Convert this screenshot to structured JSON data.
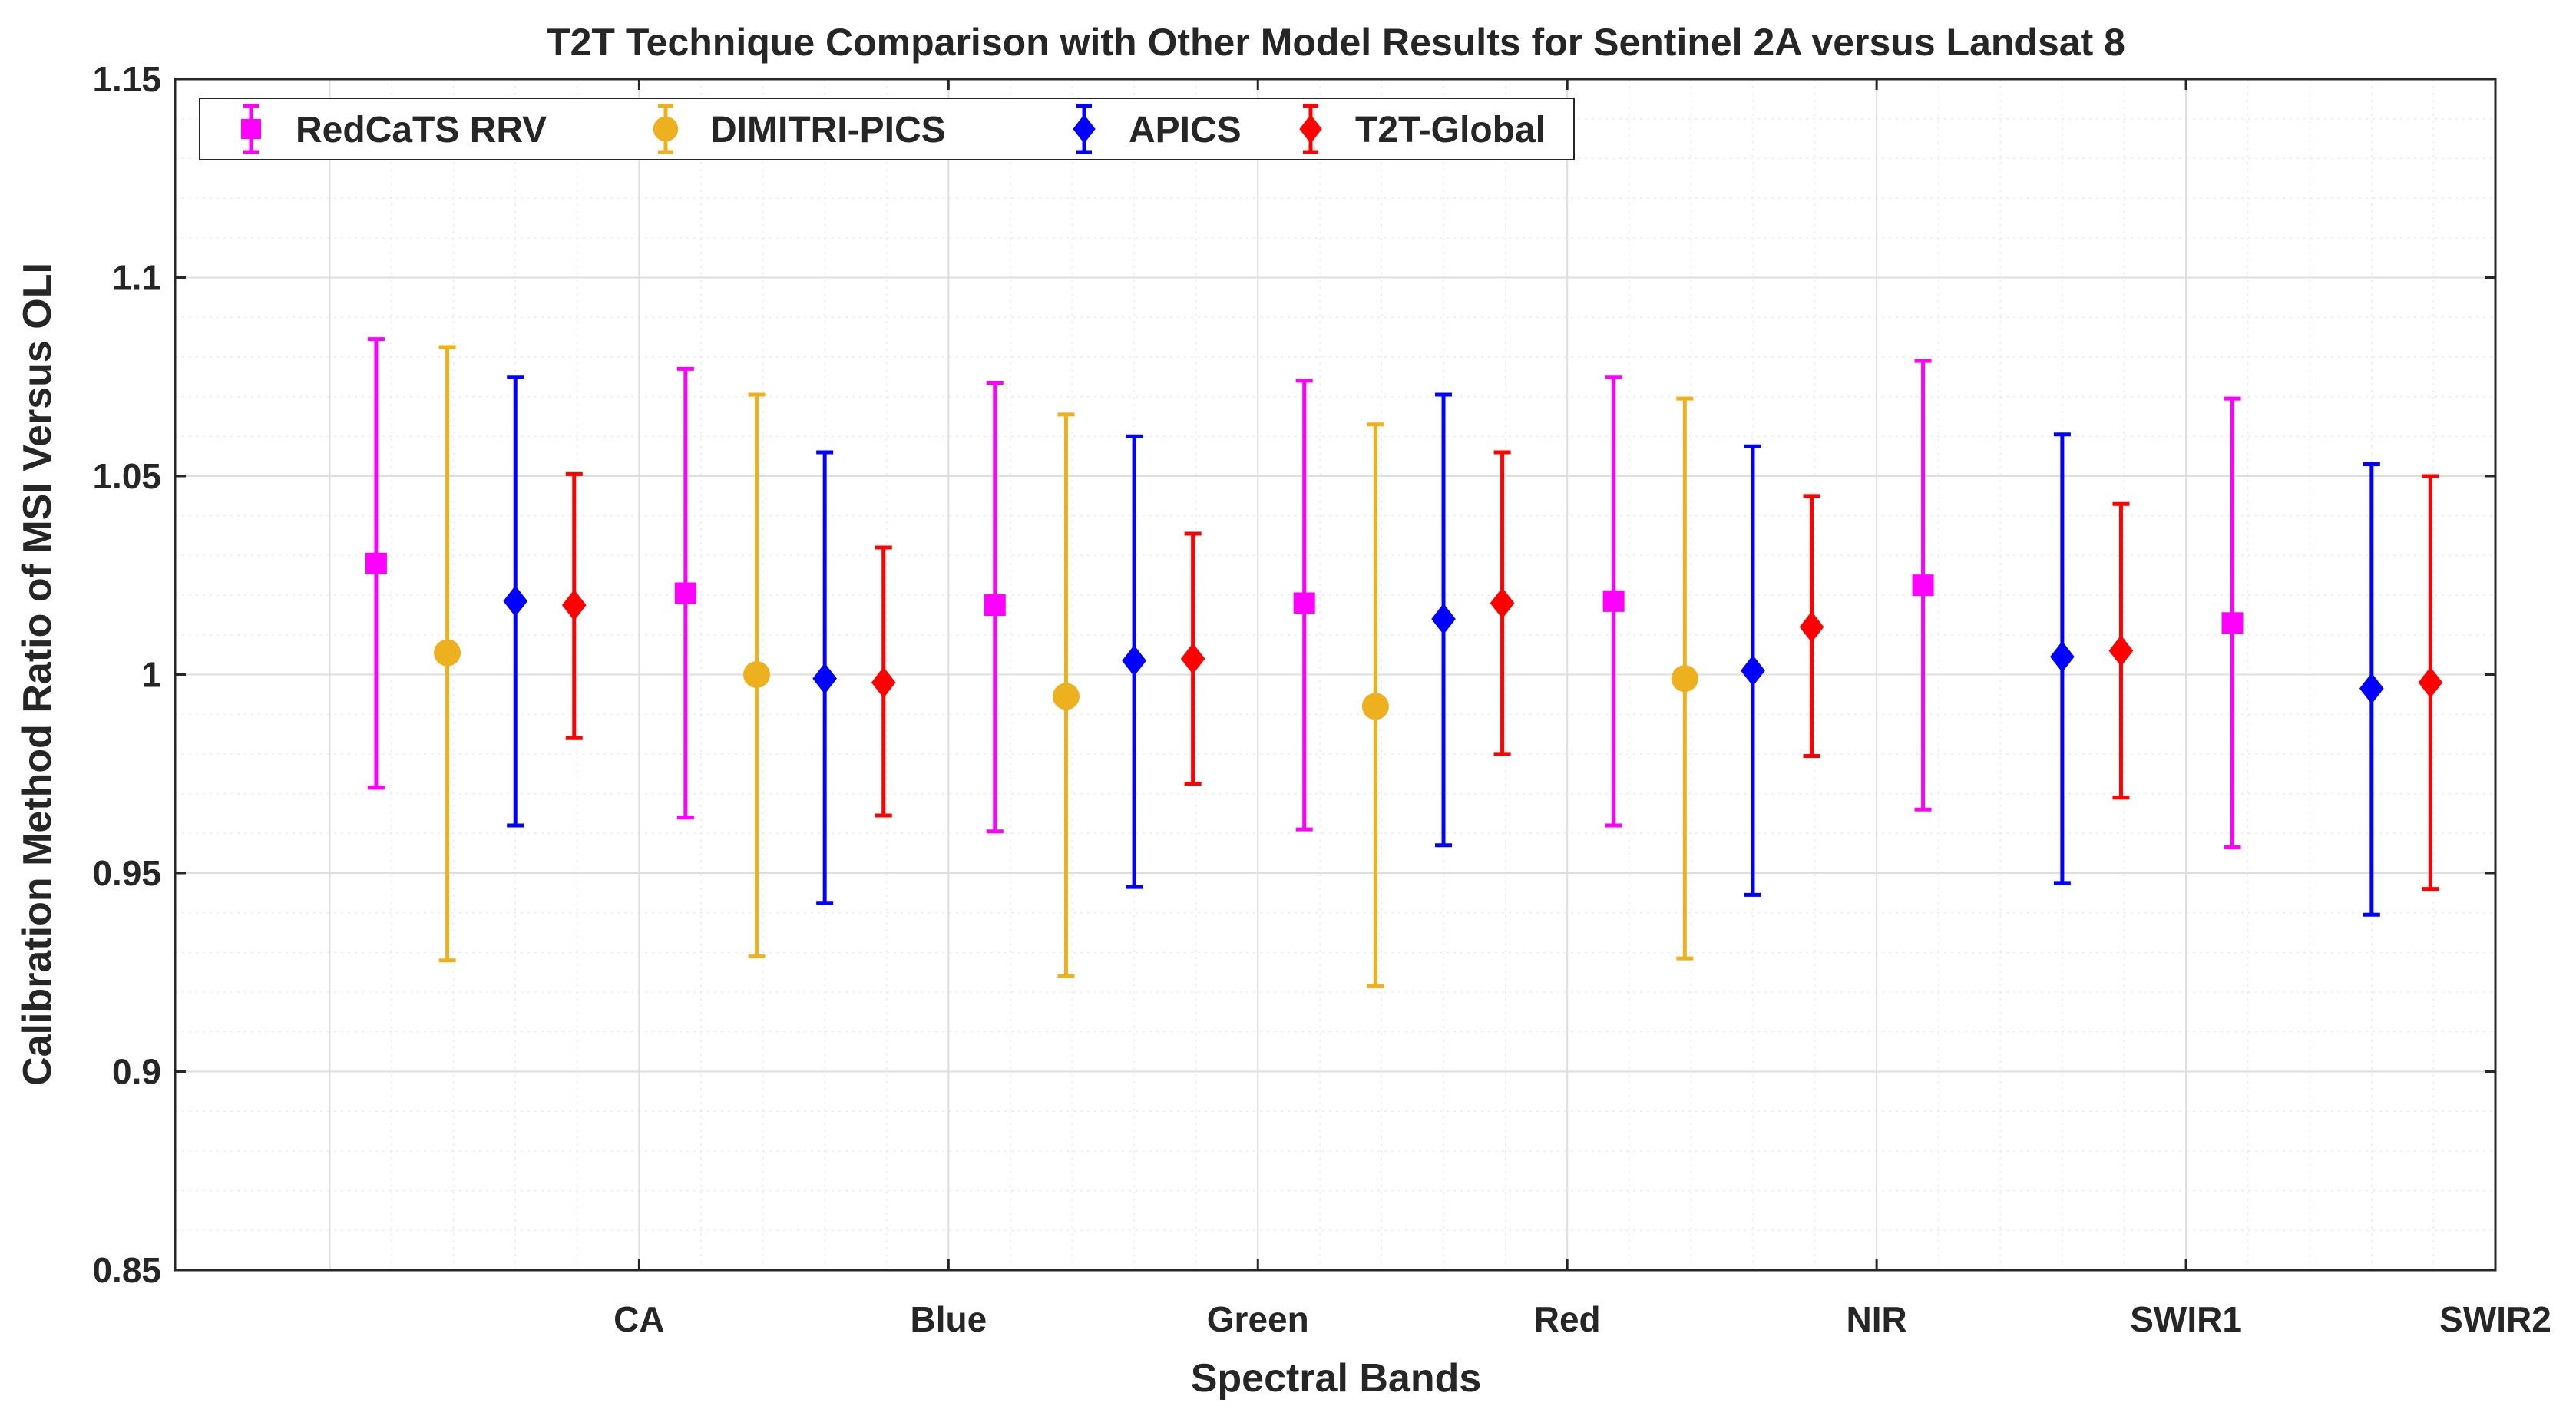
{
  "chart_data": {
    "type": "errorbar",
    "title": "T2T Technique Comparison with Other Model Results for Sentinel 2A versus Landsat 8",
    "xlabel": "Spectral Bands",
    "ylabel": "Calibration Method Ratio of MSI Versus OLI",
    "categories": [
      "CA",
      "Blue",
      "Green",
      "Red",
      "NIR",
      "SWIR1",
      "SWIR2"
    ],
    "ylim": [
      0.85,
      1.15
    ],
    "y_ticks": [
      0.85,
      0.9,
      0.95,
      1,
      1.05,
      1.1,
      1.15
    ],
    "y_tick_labels": [
      "0.85",
      "0.9",
      "0.95",
      "1",
      "1.05",
      "1.1",
      "1.15"
    ],
    "grid": true,
    "minor_grid": true,
    "legend_position": "top-left",
    "series": [
      {
        "name": "RedCaTS RRV",
        "color": "#FF00FF",
        "marker": "square",
        "values": [
          1.028,
          1.0205,
          1.0175,
          1.018,
          1.0185,
          1.0225,
          1.013
        ],
        "lower": [
          0.9715,
          0.964,
          0.9605,
          0.961,
          0.962,
          0.966,
          0.9565
        ],
        "upper": [
          1.0845,
          1.077,
          1.0735,
          1.074,
          1.075,
          1.079,
          1.0695
        ]
      },
      {
        "name": "DIMITRI-PICS",
        "color": "#EDB120",
        "marker": "circle",
        "values": [
          1.0055,
          1.0,
          0.9945,
          0.992,
          0.999,
          null,
          null
        ],
        "lower": [
          0.928,
          0.929,
          0.924,
          0.9215,
          0.9285,
          null,
          null
        ],
        "upper": [
          1.0825,
          1.0705,
          1.0655,
          1.063,
          1.0695,
          null,
          null
        ]
      },
      {
        "name": "APICS",
        "color": "#0000FF",
        "marker": "diamond",
        "values": [
          1.0185,
          0.999,
          1.0035,
          1.014,
          1.001,
          1.0045,
          0.9965
        ],
        "lower": [
          0.962,
          0.9425,
          0.9465,
          0.957,
          0.9445,
          0.9475,
          0.9395
        ],
        "upper": [
          1.075,
          1.056,
          1.06,
          1.0705,
          1.0575,
          1.0605,
          1.053
        ]
      },
      {
        "name": "T2T-Global",
        "color": "#FF0000",
        "marker": "diamond",
        "values": [
          1.0175,
          0.998,
          1.004,
          1.018,
          1.012,
          1.006,
          0.998
        ],
        "lower": [
          0.984,
          0.9645,
          0.9725,
          0.98,
          0.9795,
          0.969,
          0.946
        ],
        "upper": [
          1.0505,
          1.032,
          1.0355,
          1.056,
          1.045,
          1.043,
          1.05
        ]
      }
    ]
  }
}
